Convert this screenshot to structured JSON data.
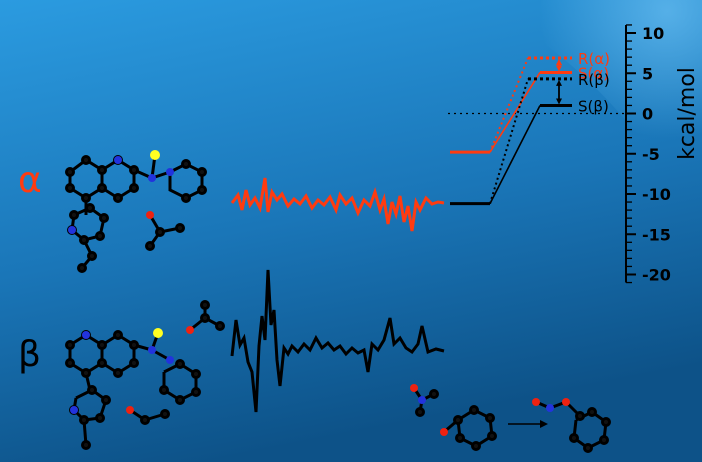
{
  "panel_labels": {
    "alpha": "α",
    "beta": "β"
  },
  "colors": {
    "background_top": "#1f8fd6",
    "background_bottom": "#0f5c96",
    "alpha": "#ff3b10",
    "beta": "#000000",
    "atom_n": "#2233dd",
    "atom_o": "#ee2211",
    "atom_s": "#ffff22"
  },
  "chart_data": {
    "type": "energy-level diagram",
    "axis": {
      "label": "kcal/mol",
      "ylim": [
        -21,
        11
      ],
      "ticks": [
        10,
        5,
        0,
        -5,
        -10,
        -15,
        -20
      ],
      "tick_labels": [
        "10",
        "5",
        "0",
        "-5",
        "-10",
        "-15",
        "-20"
      ]
    },
    "zero_reference_line": 0,
    "series": [
      {
        "key": "alpha",
        "name": "α",
        "initial_state": -4.8,
        "transition_states": [
          {
            "label": "R(α)",
            "value": 6.9,
            "style": "dotted"
          },
          {
            "label": "S(α)",
            "value": 5.1,
            "style": "solid"
          }
        ]
      },
      {
        "key": "beta",
        "name": "β",
        "initial_state": -11.2,
        "transition_states": [
          {
            "label": "R(β)",
            "value": 4.3,
            "style": "dotted"
          },
          {
            "label": "S(β)",
            "value": 1.0,
            "style": "solid"
          }
        ]
      }
    ]
  }
}
